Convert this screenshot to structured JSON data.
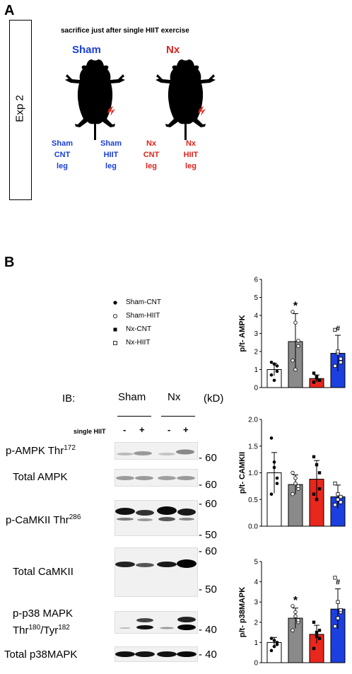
{
  "panel_a": {
    "letter": "A",
    "exp_label": "Exp 2",
    "subtitle": "sacrifice just after single HIIT exercise",
    "group_sham": "Sham",
    "group_nx": "Nx",
    "legs": [
      {
        "line1": "Sham",
        "line2": "CNT",
        "line3": "leg"
      },
      {
        "line1": "Sham",
        "line2": "HIIT",
        "line3": "leg"
      },
      {
        "line1": "Nx",
        "line2": "CNT",
        "line3": "leg"
      },
      {
        "line1": "Nx",
        "line2": "HIIT",
        "line3": "leg"
      }
    ]
  },
  "panel_b": {
    "letter": "B",
    "ib": "IB:",
    "col_sham": "Sham",
    "col_nx": "Nx",
    "kd": "(kD)",
    "single_hiit": "single HIIT",
    "signs": [
      "-",
      "+",
      "-",
      "+"
    ],
    "blots": [
      {
        "name_main": "p-AMPK Thr",
        "name_sup": "172",
        "mw": [
          "- 60"
        ]
      },
      {
        "name_main": "Total AMPK",
        "name_sup": "",
        "mw": [
          "- 60"
        ]
      },
      {
        "name_main": "p-CaMKII Thr",
        "name_sup": "286",
        "mw": [
          "- 60",
          "- 50"
        ]
      },
      {
        "name_main": "Total CaMKII",
        "name_sup": "",
        "mw": [
          "- 60",
          "- 50"
        ]
      },
      {
        "name_main": "p-p38 MAPK",
        "name_line2": "Thr",
        "sup1": "180",
        "mid": "/Tyr",
        "sup2": "182",
        "mw": [
          "- 40"
        ]
      },
      {
        "name_main": "Total p38MAPK",
        "name_sup": "",
        "mw": [
          "- 40"
        ]
      }
    ]
  },
  "legend": [
    {
      "label": "Sham-CNT",
      "marker": "filled-circle"
    },
    {
      "label": "Sham-HIIT",
      "marker": "open-circle"
    },
    {
      "label": "Nx-CNT",
      "marker": "filled-square"
    },
    {
      "label": "Nx-HIIT",
      "marker": "open-square"
    }
  ],
  "colors": {
    "sham_cnt": "#ffffff",
    "sham_hiit": "#8a8a8a",
    "nx_cnt": "#e8271d",
    "nx_hiit": "#1c3fe0",
    "blue_text": "#1a3fd6",
    "red_text": "#e0231d"
  },
  "chart_data": [
    {
      "type": "bar",
      "ylabel": "p/t- AMPK",
      "ylim": [
        0,
        6
      ],
      "yticks": [
        "0",
        "1",
        "2",
        "3",
        "4",
        "5",
        "6"
      ],
      "categories": [
        "Sham-CNT",
        "Sham-HIIT",
        "Nx-CNT",
        "Nx-HIIT"
      ],
      "values": [
        1.0,
        2.55,
        0.5,
        1.9
      ],
      "errors": [
        0.35,
        1.55,
        0.2,
        1.0
      ],
      "points": [
        [
          1.4,
          1.3,
          0.9,
          0.7,
          0.4,
          1.2
        ],
        [
          4.2,
          3.6,
          2.3,
          1.5,
          1.0,
          2.6
        ],
        [
          0.8,
          0.6,
          0.4,
          0.3,
          0.5,
          0.4
        ],
        [
          3.2,
          1.9,
          1.6,
          1.2,
          2.0,
          1.4
        ]
      ],
      "annotations": [
        "",
        "*",
        "",
        "#"
      ]
    },
    {
      "type": "bar",
      "ylabel": "p/t- CAMKII",
      "ylim": [
        0,
        2
      ],
      "yticks": [
        "0.0",
        "0.5",
        "1.0",
        "1.5",
        "2.0"
      ],
      "categories": [
        "Sham-CNT",
        "Sham-HIIT",
        "Nx-CNT",
        "Nx-HIIT"
      ],
      "values": [
        1.0,
        0.78,
        0.88,
        0.55
      ],
      "errors": [
        0.38,
        0.18,
        0.35,
        0.22
      ],
      "points": [
        [
          1.65,
          1.1,
          0.9,
          0.6,
          1.2,
          0.8
        ],
        [
          1.0,
          0.8,
          0.7,
          0.6,
          0.9,
          0.75
        ],
        [
          1.3,
          1.15,
          1.0,
          0.6,
          0.5,
          0.7
        ],
        [
          0.8,
          0.6,
          0.45,
          0.4,
          0.5,
          0.55
        ]
      ],
      "annotations": [
        "",
        "",
        "",
        ""
      ]
    },
    {
      "type": "bar",
      "ylabel": "p/t- p38MAPK",
      "ylim": [
        0,
        5
      ],
      "yticks": [
        "0",
        "1",
        "2",
        "3",
        "4",
        "5"
      ],
      "categories": [
        "Sham-CNT",
        "Sham-HIIT",
        "Nx-CNT",
        "Nx-HIIT"
      ],
      "values": [
        1.0,
        2.2,
        1.4,
        2.65
      ],
      "errors": [
        0.25,
        0.5,
        0.45,
        1.0
      ],
      "points": [
        [
          1.2,
          1.1,
          0.9,
          0.6,
          0.8,
          1.0
        ],
        [
          2.8,
          2.5,
          2.0,
          1.6,
          2.3,
          2.1
        ],
        [
          2.0,
          1.5,
          1.2,
          0.7,
          1.3,
          1.6
        ],
        [
          4.2,
          3.0,
          2.5,
          1.8,
          2.2,
          2.6
        ]
      ],
      "annotations": [
        "",
        "*",
        "",
        "#"
      ]
    }
  ]
}
